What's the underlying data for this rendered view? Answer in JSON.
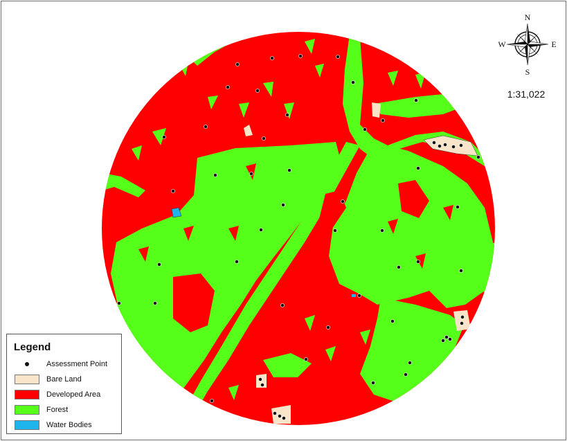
{
  "map": {
    "scale_text": "1:31,022",
    "compass": {
      "n": "N",
      "s": "S",
      "e": "E",
      "w": "W"
    },
    "colors": {
      "bare_land": "#F8E4C8",
      "developed_area": "#FF0000",
      "forest": "#55FF1A",
      "water_bodies": "#1EB4EC",
      "assessment_point": "#111111"
    }
  },
  "legend": {
    "title": "Legend",
    "items": [
      {
        "label": "Assessment Point",
        "kind": "point"
      },
      {
        "label": "Bare Land",
        "kind": "swatch",
        "color": "#F8E4C8"
      },
      {
        "label": "Developed Area",
        "kind": "swatch",
        "color": "#FF0000"
      },
      {
        "label": "Forest",
        "kind": "swatch",
        "color": "#55FF1A"
      },
      {
        "label": "Water Bodies",
        "kind": "swatch",
        "color": "#1EB4EC"
      }
    ]
  }
}
